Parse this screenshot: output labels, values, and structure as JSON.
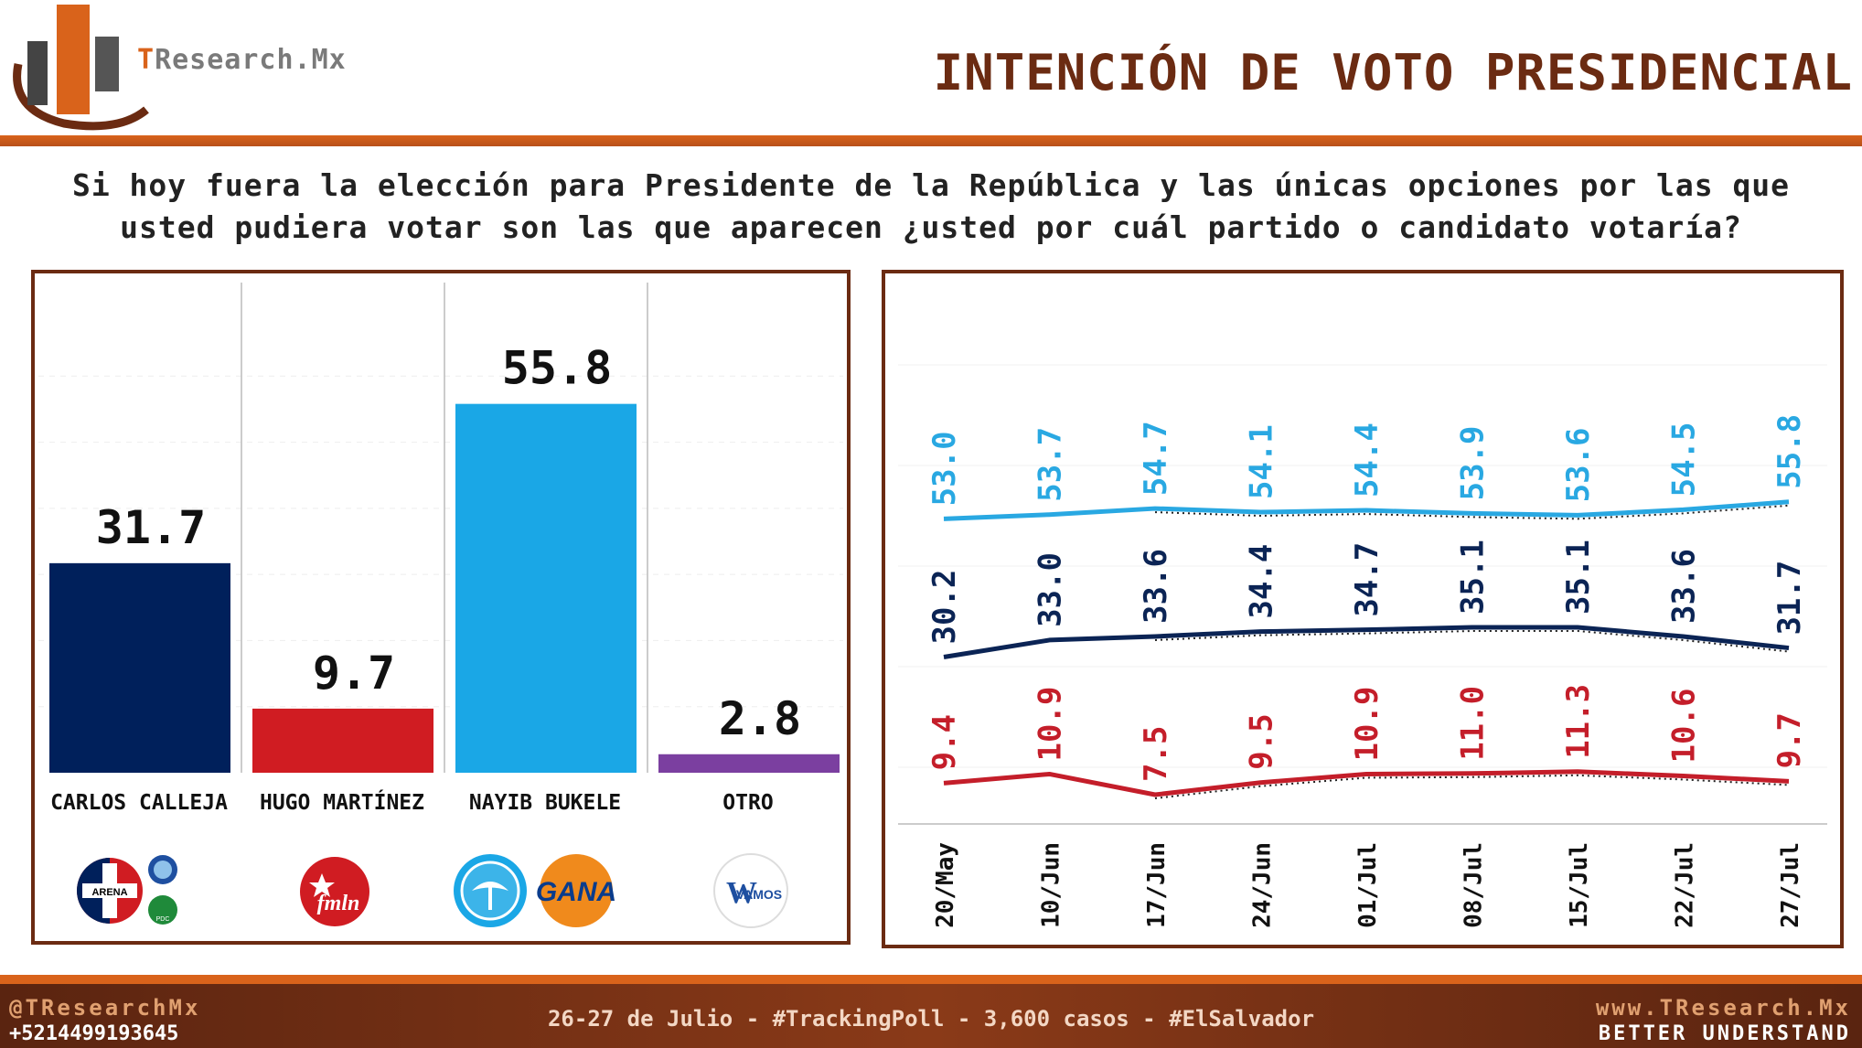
{
  "header": {
    "brand_prefix": "T",
    "brand_rest": "Research.Mx",
    "title": "INTENCIÓN DE VOTO PRESIDENCIAL"
  },
  "question": "Si hoy fuera la elección para Presidente de la República y las únicas opciones por las que usted pudiera votar son las que aparecen ¿usted por cuál partido o candidato votaría?",
  "chart_data": [
    {
      "type": "bar",
      "categories": [
        "CARLOS CALLEJA",
        "HUGO MARTÍNEZ",
        "NAYIB BUKELE",
        "OTRO"
      ],
      "values": [
        31.7,
        9.7,
        55.8,
        2.8
      ],
      "colors": [
        "#00205b",
        "#d01c22",
        "#1aa7e6",
        "#7b3fa0"
      ],
      "ylim": [
        0,
        70
      ],
      "party_logos": [
        [
          "ARENA",
          "PCN",
          "PDC"
        ],
        [
          "fmln"
        ],
        [
          "GANA-bird",
          "GANA"
        ],
        [
          "VAMOS"
        ]
      ]
    },
    {
      "type": "line",
      "x": [
        "20/May",
        "10/Jun",
        "17/Jun",
        "24/Jun",
        "01/Jul",
        "08/Jul",
        "15/Jul",
        "22/Jul",
        "27/Jul"
      ],
      "series": [
        {
          "color": "#29a8e2",
          "values": [
            53.0,
            53.7,
            54.7,
            54.1,
            54.4,
            53.9,
            53.6,
            54.5,
            55.8
          ]
        },
        {
          "color": "#0b2455",
          "values": [
            30.2,
            33.0,
            33.6,
            34.4,
            34.7,
            35.1,
            35.1,
            33.6,
            31.7
          ]
        },
        {
          "color": "#c41e2a",
          "values": [
            9.4,
            10.9,
            7.5,
            9.5,
            10.9,
            11.0,
            11.3,
            10.6,
            9.7
          ]
        }
      ],
      "trend_line": "dotted"
    }
  ],
  "footer": {
    "handle": "@TResearchMx",
    "phone": "+5214499193645",
    "note": "26-27 de Julio - #TrackingPoll - 3,600 casos - #ElSalvador",
    "site": "www.TResearch.Mx",
    "tagline": "BETTER UNDERSTAND"
  }
}
